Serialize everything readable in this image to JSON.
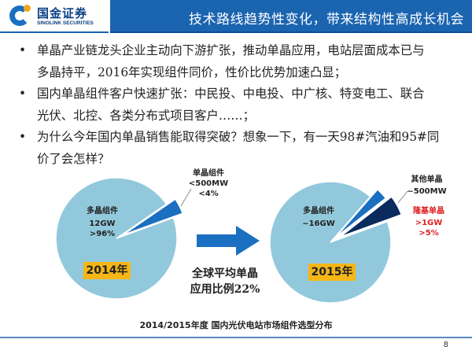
{
  "logo": {
    "cn": "国金证券",
    "en": "SINOLINK SECURITIES"
  },
  "header": {
    "title": "技术路线趋势性变化，带来结构性高成长机会"
  },
  "bullets": [
    {
      "lines": [
        "单晶产业链龙头企业主动向下游扩张，推动单晶应用，电站层面成本已与",
        "多晶持平，2016年实现组件同价，性价比优势加速凸显；"
      ]
    },
    {
      "lines": [
        "国内单晶组件客户快速扩张：中民投、中电投、中广核、特变电工、联合",
        "光伏、北控、各类分布式项目客户……；"
      ]
    },
    {
      "lines": [
        "为什么今年国内单晶销售能取得突破？想象一下，有一天98#汽油和95#同",
        "价了会怎样？"
      ]
    }
  ],
  "chart_data": [
    {
      "type": "pie",
      "title": "2014年",
      "slices": [
        {
          "name": "多晶组件",
          "value": 96,
          "labels": [
            "多晶组件",
            "12GW",
            ">96%"
          ],
          "color": "#92c8dc"
        },
        {
          "name": "单晶组件",
          "value": 4,
          "labels": [
            "单晶组件",
            "<500MW",
            "<4%"
          ],
          "color": "#1b6fc1"
        }
      ]
    },
    {
      "type": "pie",
      "title": "2015年",
      "slices": [
        {
          "name": "多晶组件",
          "value": 92,
          "labels": [
            "多晶组件",
            "~16GW"
          ],
          "color": "#92c8dc"
        },
        {
          "name": "其他单晶",
          "value": 3,
          "labels": [
            "其他单晶",
            "~500MW"
          ],
          "color": "#1b6fc1"
        },
        {
          "name": "隆基单晶",
          "value": 5,
          "labels": [
            "隆基单晶",
            ">1GW",
            ">5%"
          ],
          "color": "#0b2a5e"
        }
      ]
    }
  ],
  "middle": {
    "line1": "全球平均单晶",
    "line2": "应用比例22%"
  },
  "caption": "2014/2015年度 国内光伏电站市场组件选型分布",
  "page_number": "8"
}
